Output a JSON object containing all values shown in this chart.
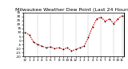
{
  "title": "Milwaukee Weather Dew Point (Last 24 Hours)",
  "line_color": "#dd0000",
  "marker_color": "#000000",
  "bg_color": "#ffffff",
  "grid_color": "#888888",
  "ylim": [
    -20,
    35
  ],
  "yticks": [
    -20,
    -15,
    -10,
    -5,
    0,
    5,
    10,
    15,
    20,
    25,
    30,
    35
  ],
  "ytick_labels": [
    "-20",
    "-15",
    "-10",
    "-5",
    "0",
    "5",
    "10",
    "15",
    "20",
    "25",
    "30",
    "35"
  ],
  "x": [
    0,
    1,
    2,
    3,
    4,
    5,
    6,
    7,
    8,
    9,
    10,
    11,
    12,
    13,
    14,
    15,
    16,
    17,
    18,
    19,
    20,
    21,
    22,
    23
  ],
  "y": [
    10,
    7,
    -2,
    -5,
    -7,
    -9,
    -8,
    -10,
    -9,
    -11,
    -9,
    -13,
    -11,
    -9,
    -7,
    4,
    17,
    27,
    29,
    24,
    27,
    21,
    27,
    31
  ],
  "vgrid_positions": [
    0,
    3,
    6,
    9,
    12,
    15,
    18,
    21,
    23
  ],
  "title_fontsize": 4.5,
  "tick_fontsize": 3.0,
  "figwidth": 1.6,
  "figheight": 0.87,
  "dpi": 100
}
